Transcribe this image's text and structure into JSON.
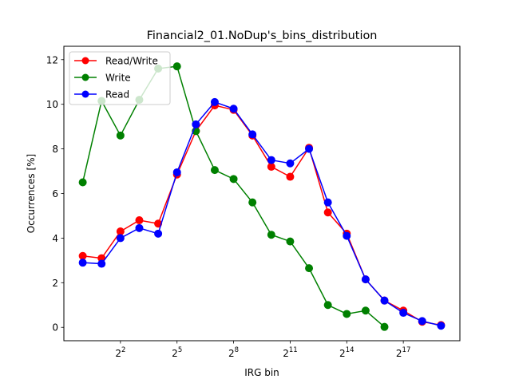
{
  "chart_data": {
    "type": "line",
    "title": "Financial2_01.NoDup's_bins_distribution",
    "xlabel": "IRG bin",
    "ylabel": "Occurrences [%]",
    "x": [
      0,
      1,
      2,
      3,
      4,
      5,
      6,
      7,
      8,
      9,
      10,
      11,
      12,
      13,
      14,
      15,
      16,
      17,
      18,
      19
    ],
    "xlim": [
      -1,
      20
    ],
    "ylim": [
      -0.6,
      12.6
    ],
    "xticks": [
      {
        "value": 2,
        "base": "2",
        "exp": "2"
      },
      {
        "value": 5,
        "base": "2",
        "exp": "5"
      },
      {
        "value": 8,
        "base": "2",
        "exp": "8"
      },
      {
        "value": 11,
        "base": "2",
        "exp": "11"
      },
      {
        "value": 14,
        "base": "2",
        "exp": "14"
      },
      {
        "value": 17,
        "base": "2",
        "exp": "17"
      }
    ],
    "yticks": [
      0,
      2,
      4,
      6,
      8,
      10,
      12
    ],
    "legend_position": "top-left",
    "series": [
      {
        "name": "Read/Write",
        "color": "#ff0000",
        "values": [
          3.2,
          3.1,
          4.3,
          4.8,
          4.65,
          6.85,
          8.8,
          9.95,
          9.75,
          8.6,
          7.2,
          6.75,
          8.05,
          5.15,
          4.2,
          2.15,
          1.2,
          0.75,
          0.25,
          0.1
        ]
      },
      {
        "name": "Write",
        "color": "#008000",
        "values": [
          6.5,
          10.15,
          8.6,
          10.2,
          11.6,
          11.7,
          8.8,
          7.05,
          6.65,
          5.6,
          4.15,
          3.85,
          2.65,
          1.0,
          0.6,
          0.75,
          0.02,
          null,
          null,
          null
        ]
      },
      {
        "name": "Read",
        "color": "#0000ff",
        "values": [
          2.9,
          2.85,
          4.0,
          4.45,
          4.2,
          6.95,
          9.1,
          10.1,
          9.8,
          8.65,
          7.5,
          7.35,
          8.0,
          5.6,
          4.1,
          2.15,
          1.2,
          0.65,
          0.28,
          0.07
        ]
      }
    ]
  }
}
